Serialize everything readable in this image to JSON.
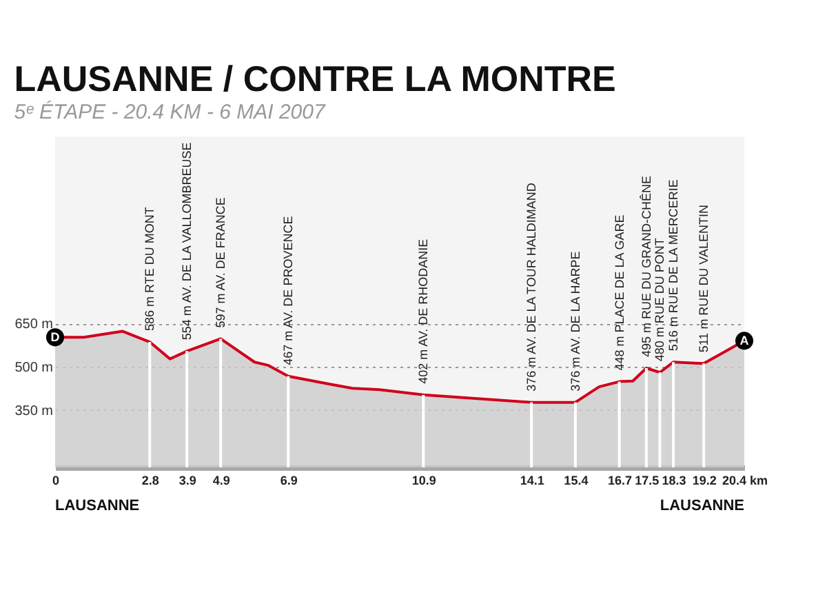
{
  "chart_data": {
    "type": "area",
    "title": "LAUSANNE / CONTRE LA MONTRE",
    "subtitle": "5ᵉ ÉTAPE - 20.4 KM - 6 MAI 2007",
    "x": [
      0,
      0.85,
      2.0,
      2.8,
      3.4,
      3.9,
      4.9,
      5.9,
      6.3,
      6.9,
      8.1,
      8.8,
      9.6,
      10.9,
      14.1,
      15.4,
      16.1,
      16.7,
      17.1,
      17.5,
      17.9,
      18.3,
      19.2,
      20.4
    ],
    "series": [
      {
        "color": "#d0021b",
        "values": [
          602,
          602,
          623,
          586,
          527,
          554,
          597,
          516,
          505,
          467,
          440,
          425,
          420,
          402,
          376,
          376,
          430,
          448,
          450,
          495,
          480,
          516,
          511,
          590
        ]
      }
    ],
    "xlim": [
      0,
      20.4
    ],
    "xticks": [
      0,
      2.8,
      3.9,
      4.9,
      6.9,
      10.9,
      14.1,
      15.4,
      16.7,
      17.5,
      18.3,
      19.2,
      {
        "value": 20.4,
        "label": "20.4 km"
      }
    ],
    "ylim": [
      150,
      1300
    ],
    "yticks": [
      {
        "value": 350,
        "label": "350 m"
      },
      {
        "value": 500,
        "label": "500 m"
      },
      {
        "value": 650,
        "label": "650 m"
      }
    ],
    "grid": "y",
    "annotations": [
      {
        "text": "586 m RTE DU MONT",
        "x": 2.8,
        "y": 586
      },
      {
        "text": "554 m AV. DE LA VALLOMBREUSE",
        "x": 3.9,
        "y": 554
      },
      {
        "text": "597 m AV. DE FRANCE",
        "x": 4.9,
        "y": 597
      },
      {
        "text": "467 m AV. DE PROVENCE",
        "x": 6.9,
        "y": 467
      },
      {
        "text": "402 m AV. DE RHODANIE",
        "x": 10.9,
        "y": 402
      },
      {
        "text": "376 m AV. DE LA TOUR HALDIMAND",
        "x": 14.1,
        "y": 376
      },
      {
        "text": "376 m AV. DE LA HARPE",
        "x": 15.4,
        "y": 376
      },
      {
        "text": "448 m PLACE DE LA GARE",
        "x": 16.7,
        "y": 448
      },
      {
        "text": "495 m RUE DU GRAND-CHÊNE",
        "x": 17.5,
        "y": 495
      },
      {
        "text": "480 m RUE DU PONT",
        "x": 17.9,
        "y": 480
      },
      {
        "text": "516 m RUE DE LA MERCERIE",
        "x": 18.3,
        "y": 516
      },
      {
        "text": "511 m RUE DU VALENTIN",
        "x": 19.2,
        "y": 511
      },
      {
        "text": "D",
        "x": 0,
        "y": 602
      },
      {
        "text": "A",
        "x": 20.4,
        "y": 590
      },
      "LAUSANNE",
      "LAUSANNE"
    ]
  }
}
